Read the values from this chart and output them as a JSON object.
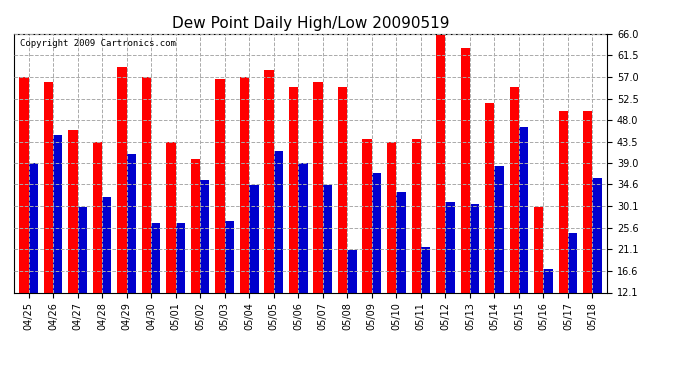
{
  "title": "Dew Point Daily High/Low 20090519",
  "copyright_text": "Copyright 2009 Cartronics.com",
  "dates": [
    "04/25",
    "04/26",
    "04/27",
    "04/28",
    "04/29",
    "04/30",
    "05/01",
    "05/02",
    "05/03",
    "05/04",
    "05/05",
    "05/06",
    "05/07",
    "05/08",
    "05/09",
    "05/10",
    "05/11",
    "05/12",
    "05/13",
    "05/14",
    "05/15",
    "05/16",
    "05/17",
    "05/18"
  ],
  "highs": [
    57.0,
    56.0,
    46.0,
    43.5,
    59.0,
    57.0,
    43.5,
    40.0,
    56.5,
    57.0,
    58.5,
    55.0,
    56.0,
    55.0,
    44.0,
    43.5,
    44.0,
    66.0,
    63.0,
    51.5,
    55.0,
    30.0,
    50.0,
    50.0
  ],
  "lows": [
    39.0,
    45.0,
    30.0,
    32.0,
    41.0,
    26.5,
    26.5,
    35.5,
    27.0,
    34.5,
    41.5,
    39.0,
    34.5,
    21.0,
    37.0,
    33.0,
    21.5,
    31.0,
    30.5,
    38.5,
    46.5,
    17.0,
    24.5,
    36.0
  ],
  "high_color": "#ff0000",
  "low_color": "#0000cc",
  "bg_color": "#ffffff",
  "grid_color": "#aaaaaa",
  "ylim_min": 12.1,
  "ylim_max": 66.0,
  "yticks": [
    12.1,
    16.6,
    21.1,
    25.6,
    30.1,
    34.6,
    39.0,
    43.5,
    48.0,
    52.5,
    57.0,
    61.5,
    66.0
  ],
  "title_fontsize": 11,
  "tick_fontsize": 7,
  "bar_width": 0.38
}
